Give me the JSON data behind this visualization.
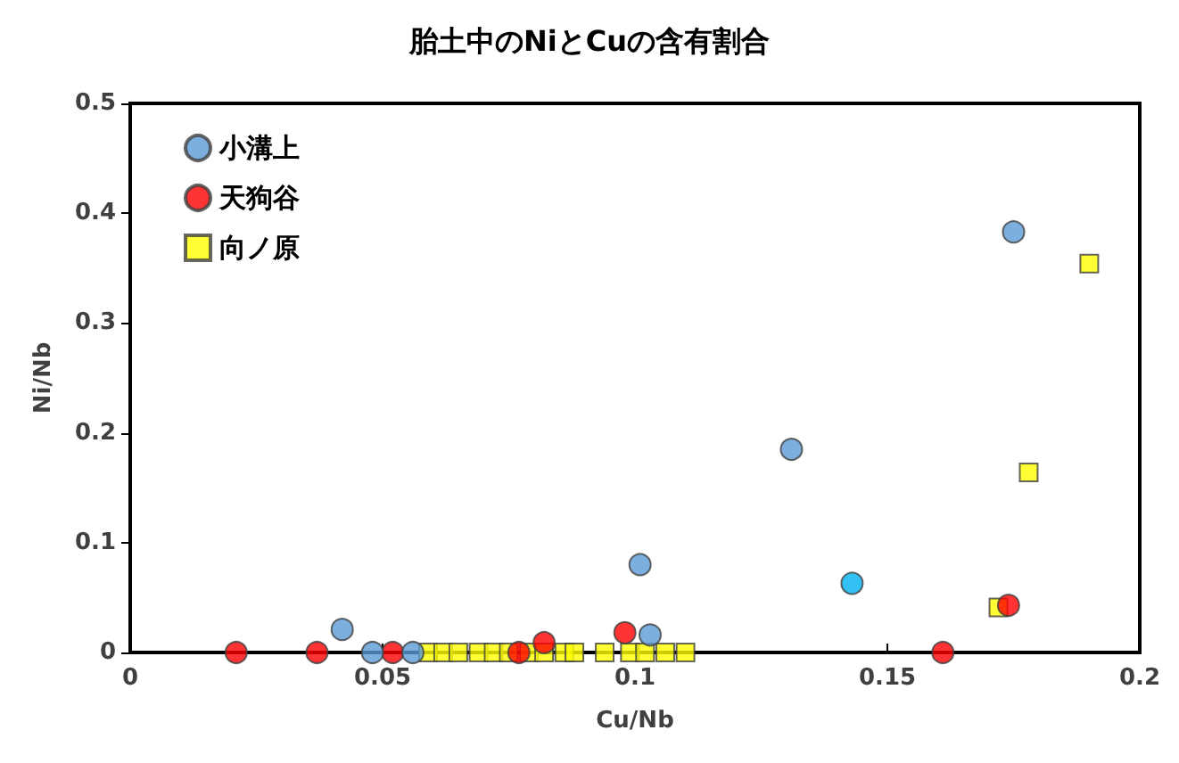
{
  "chart_data": {
    "type": "scatter",
    "title": "胎土中のNiとCuの含有割合",
    "xlabel": "Cu/Nb",
    "ylabel": "Ni/Nb",
    "xlim": [
      0,
      0.2
    ],
    "xticks": [
      0,
      0.05,
      0.1,
      0.15,
      0.2
    ],
    "ylim": [
      0,
      0.5
    ],
    "yticks": [
      0,
      0.1,
      0.2,
      0.3,
      0.4,
      0.5
    ],
    "grid": false,
    "legend": "top left",
    "series": [
      {
        "name": "小溝上",
        "color": "#5b9bd5",
        "marker": "circle",
        "x": [
          0.042,
          0.048,
          0.056,
          0.101,
          0.103,
          0.131,
          0.143,
          0.175
        ],
        "values": [
          0.021,
          0,
          0,
          0.08,
          0.016,
          0.185,
          0.063,
          0.383
        ],
        "colors": [
          "#5b9bd5",
          "#5b9bd5",
          "#5b9bd5",
          "#5b9bd5",
          "#5b9bd5",
          "#5b9bd5",
          "#00b0f0",
          "#5b9bd5"
        ]
      },
      {
        "name": "天狗谷",
        "color": "#ff0000",
        "marker": "circle",
        "x": [
          0.021,
          0.037,
          0.052,
          0.077,
          0.082,
          0.098,
          0.161,
          0.174
        ],
        "values": [
          0,
          0,
          0,
          0,
          0.009,
          0.018,
          0,
          0.043
        ]
      },
      {
        "name": "向ノ原",
        "color": "#ffff00",
        "marker": "square",
        "x": [
          0.059,
          0.062,
          0.065,
          0.069,
          0.072,
          0.075,
          0.079,
          0.082,
          0.086,
          0.088,
          0.094,
          0.099,
          0.102,
          0.106,
          0.11,
          0.172,
          0.178,
          0.19
        ],
        "values": [
          0,
          0,
          0,
          0,
          0,
          0,
          0,
          0,
          0,
          0,
          0,
          0,
          0,
          0,
          0,
          0.041,
          0.164,
          0.354
        ]
      }
    ]
  }
}
